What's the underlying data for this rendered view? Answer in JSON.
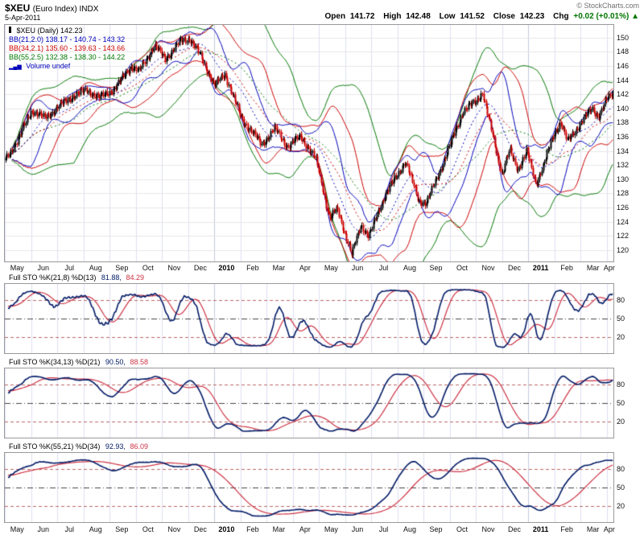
{
  "header": {
    "symbol": "$XEU",
    "title_rest": "(Euro Index) INDX",
    "date": "5-Apr-2011",
    "copyright": "© StockCharts.com",
    "quote": {
      "open_label": "Open",
      "open": "141.72",
      "high_label": "High",
      "high": "142.48",
      "low_label": "Low",
      "low": "141.52",
      "close_label": "Close",
      "close": "142.23",
      "chg_label": "Chg",
      "chg": "+0.02 (+0.01%)",
      "chg_arrow": "▲"
    }
  },
  "main": {
    "legend_symbol": "$XEU (Daily) 142.23",
    "legend_bb1": "BB(21,2.0) 138.17 - 140.74 - 143.32",
    "legend_bb2": "BB(34,2.1) 135.60 - 139.63 - 143.66",
    "legend_bb3": "BB(55,2.5) 132.38 - 138.30 - 144.22",
    "legend_volume": "Volume undef"
  },
  "panels": [
    {
      "label": "Full STO %K(21,8) %D(13)",
      "k": "81.88,",
      "d": "84.29"
    },
    {
      "label": "Full STO %K(34,13) %D(21)",
      "k": "90.50,",
      "d": "88.58"
    },
    {
      "label": "Full STO %K(55,21) %D(34)",
      "k": "92.93,",
      "d": "86.09"
    }
  ],
  "chart_data": {
    "type": "candlestick",
    "symbol": "$XEU",
    "timeframe": "daily",
    "date_range": "May 2009 - 5 Apr 2011",
    "last_close": 142.23,
    "open": 141.72,
    "high": 142.48,
    "low": 141.52,
    "close": 142.23,
    "change_pct": 0.01,
    "price_axis": {
      "min": 120,
      "max": 150,
      "step": 2,
      "plot_min": 118.4,
      "plot_max": 151.8,
      "ticks": [
        150,
        148,
        146,
        144,
        142,
        140,
        138,
        136,
        134,
        132,
        130,
        128,
        126,
        124,
        122,
        120
      ]
    },
    "osc_axis": {
      "plot_min": -6.5,
      "plot_max": 105.5,
      "ticks": [
        80,
        50,
        20
      ]
    },
    "months": [
      "May",
      "Jun",
      "Jul",
      "Aug",
      "Sep",
      "Oct",
      "Nov",
      "Dec",
      "2010",
      "Feb",
      "Mar",
      "Apr",
      "May",
      "Jun",
      "Jul",
      "Aug",
      "Sep",
      "Oct",
      "Nov",
      "Dec",
      "2011",
      "Feb",
      "Mar",
      "Apr"
    ],
    "total_months": 23.25,
    "num_points": 480,
    "price_anchors_unit": "months_from_May_2009_vs_index_value",
    "price_anchors": [
      [
        0,
        132.8
      ],
      [
        0.5,
        135.8
      ],
      [
        1,
        139.8
      ],
      [
        1.5,
        138.6
      ],
      [
        2,
        140.2
      ],
      [
        2.6,
        141.8
      ],
      [
        3.1,
        142.6
      ],
      [
        3.6,
        141.5
      ],
      [
        4.2,
        142.9
      ],
      [
        4.8,
        146.0
      ],
      [
        5.1,
        145.2
      ],
      [
        5.7,
        148.9
      ],
      [
        6.1,
        147.0
      ],
      [
        6.7,
        149.5
      ],
      [
        7.05,
        149.9
      ],
      [
        7.5,
        147.2
      ],
      [
        8,
        143.2
      ],
      [
        8.4,
        144.9
      ],
      [
        9,
        138.8
      ],
      [
        9.6,
        135.9
      ],
      [
        9.8,
        134.9
      ],
      [
        10.3,
        137.2
      ],
      [
        10.8,
        134.6
      ],
      [
        11.3,
        136.1
      ],
      [
        11.9,
        132.6
      ],
      [
        12.4,
        124.5
      ],
      [
        12.7,
        125.8
      ],
      [
        13.1,
        121.2
      ],
      [
        13.25,
        119.3
      ],
      [
        13.6,
        123.6
      ],
      [
        13.9,
        121.9
      ],
      [
        14.5,
        127.6
      ],
      [
        15.0,
        130.6
      ],
      [
        15.3,
        132.6
      ],
      [
        15.8,
        127.1
      ],
      [
        16.1,
        126.6
      ],
      [
        16.5,
        130.1
      ],
      [
        17.0,
        134.6
      ],
      [
        17.5,
        139.6
      ],
      [
        18.0,
        141.0
      ],
      [
        18.25,
        142.3
      ],
      [
        18.7,
        135.3
      ],
      [
        19.0,
        130.7
      ],
      [
        19.3,
        134.1
      ],
      [
        19.6,
        131.4
      ],
      [
        19.95,
        133.9
      ],
      [
        20.3,
        129.4
      ],
      [
        20.6,
        132.1
      ],
      [
        21.0,
        136.4
      ],
      [
        21.25,
        138.1
      ],
      [
        21.5,
        135.3
      ],
      [
        22.0,
        137.9
      ],
      [
        22.45,
        140.0
      ],
      [
        22.7,
        138.9
      ],
      [
        23.0,
        141.1
      ],
      [
        23.25,
        142.23
      ]
    ],
    "overlays": [
      {
        "name": "BB(21,2.0)",
        "period": 21,
        "stdev": 2.0,
        "color": "#0000bb",
        "values": [
          138.17,
          140.74,
          143.32
        ]
      },
      {
        "name": "BB(34,2.1)",
        "period": 34,
        "stdev": 2.1,
        "color": "#cc0000",
        "values": [
          135.6,
          139.63,
          143.66
        ]
      },
      {
        "name": "BB(55,2.5)",
        "period": 55,
        "stdev": 2.5,
        "color": "#007700",
        "values": [
          132.38,
          138.3,
          144.22
        ]
      }
    ],
    "indicators": [
      {
        "name": "Full STO %K(21,8) %D(13)",
        "period": 21,
        "smooth": 8,
        "dperiod": 13,
        "k": 81.88,
        "d": 84.29
      },
      {
        "name": "Full STO %K(34,13) %D(21)",
        "period": 34,
        "smooth": 13,
        "dperiod": 21,
        "k": 90.5,
        "d": 88.58
      },
      {
        "name": "Full STO %K(55,21) %D(34)",
        "period": 55,
        "smooth": 21,
        "dperiod": 34,
        "k": 92.93,
        "d": 86.09
      }
    ],
    "volume": "undef",
    "colors": {
      "candle_up": "#000000",
      "candle_down": "#cc0000",
      "grid": "#e7e7e7",
      "month_grid": "#dcdff0",
      "month_grid_year": "#c3c8dd",
      "k_line": "#001a66",
      "d_line": "#cc3344",
      "ob_os_line": "#bb6666",
      "mid_line": "#444444",
      "border": "#999999"
    }
  }
}
